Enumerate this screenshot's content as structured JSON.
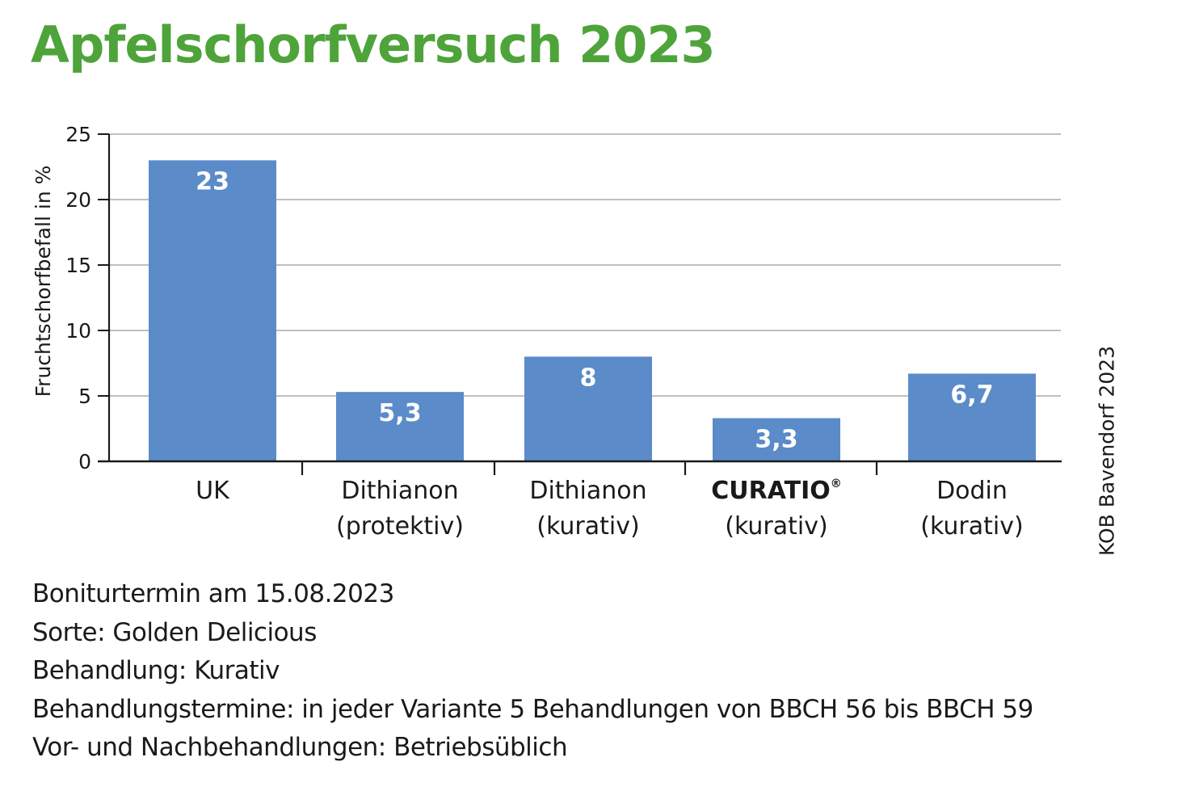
{
  "title": "Apfelschorfversuch 2023",
  "source": "KOB Bavendorf 2023",
  "notes": [
    "Boniturtermin am 15.08.2023",
    "Sorte: Golden Delicious",
    "Behandlung: Kurativ",
    "Behandlungstermine: in jeder Variante 5 Behandlungen von BBCH 56 bis BBCH 59",
    "Vor- und Nachbehandlungen: Betriebsüblich"
  ],
  "colors": {
    "title": "#4ea43a",
    "bar": "#5b8bc9",
    "grid": "#9a9a9a",
    "axis": "#1a1a1a",
    "bar_label": "#ffffff"
  },
  "chart_data": {
    "type": "bar",
    "title": "",
    "xlabel": "",
    "ylabel": "Fruchtschorfbefall in %",
    "ylim": [
      0,
      25
    ],
    "yticks": [
      0,
      5,
      10,
      15,
      20,
      25
    ],
    "grid": true,
    "categories": [
      {
        "lines": [
          "UK"
        ],
        "bold": false
      },
      {
        "lines": [
          "Dithianon",
          "(protektiv)"
        ],
        "bold": false
      },
      {
        "lines": [
          "Dithianon",
          "(kurativ)"
        ],
        "bold": false
      },
      {
        "lines": [
          "CURATIO",
          "(kurativ)"
        ],
        "bold": true,
        "mark": "®"
      },
      {
        "lines": [
          "Dodin",
          "(kurativ)"
        ],
        "bold": false
      }
    ],
    "values": [
      23,
      5.3,
      8,
      3.3,
      6.7
    ],
    "data_labels": [
      "23",
      "5,3",
      "8",
      "3,3",
      "6,7"
    ]
  }
}
